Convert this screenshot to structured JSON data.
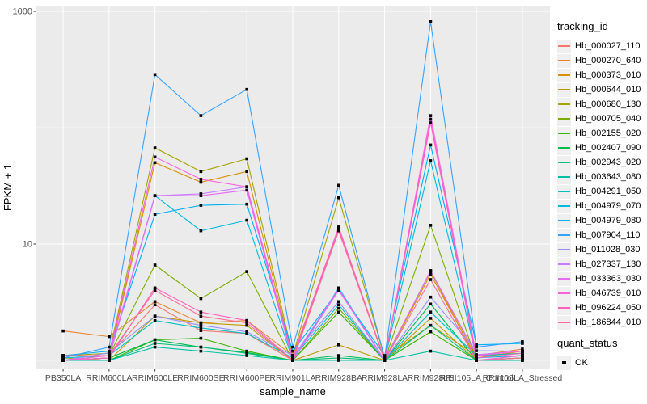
{
  "figure": {
    "y_axis": {
      "label": "FPKM + 1"
    },
    "x_axis": {
      "label": "sample_name"
    },
    "legend": {
      "tracking": {
        "title": "tracking_id"
      },
      "quant": {
        "title": "quant_status",
        "items": [
          {
            "label": "OK",
            "marker": "black-square-icon"
          }
        ]
      }
    },
    "colors": {
      "panel_bg": "#EBEBEB",
      "grid": "#FFFFFF",
      "tick_text": "#4D4D4D",
      "tick_mark": "#333333",
      "point": "#000000",
      "legend_key_bg": "#EFEFEF"
    }
  },
  "chart_data": {
    "type": "line",
    "title": "",
    "xlabel": "sample_name",
    "ylabel": "FPKM + 1",
    "yscale": "log10",
    "ylim": [
      0.84,
      1100
    ],
    "yticks": [
      {
        "value": 1000,
        "label": "1000"
      },
      {
        "value": 10,
        "label": "10"
      }
    ],
    "minor_gridlines": [
      1,
      100
    ],
    "grid": true,
    "legend_position": "right",
    "point_marker": "black-square",
    "categories": [
      "PB350LA",
      "RRIM600LA",
      "RRIM600LE",
      "RRIM600SE",
      "RRIM600PE",
      "RRIM901LA",
      "RRIM928BA",
      "RRIM928LA",
      "RRIM928LE",
      "RRII105LA_Control",
      "RRII105LA_Stressed"
    ],
    "quant_status": "OK",
    "series": [
      {
        "name": "Hb_000027_110",
        "color": "#F8766D",
        "values": [
          1.1,
          1.1,
          3.0,
          1.8,
          1.7,
          1.0,
          13.0,
          1.0,
          5.9,
          1.0,
          1.05
        ]
      },
      {
        "name": "Hb_000270_640",
        "color": "#EA8331",
        "values": [
          1.79,
          1.6,
          3.2,
          2.1,
          2.2,
          1.1,
          13.5,
          1.02,
          5.8,
          1.1,
          1.25
        ]
      },
      {
        "name": "Hb_000373_010",
        "color": "#D89000",
        "values": [
          1.0,
          1.05,
          50.0,
          34.0,
          42.0,
          1.05,
          14.0,
          1.0,
          5.5,
          1.05,
          1.2
        ]
      },
      {
        "name": "Hb_000644_010",
        "color": "#C09B00",
        "values": [
          1.05,
          1.0,
          2.4,
          2.1,
          2.0,
          1.0,
          1.36,
          1.0,
          2.3,
          1.0,
          1.1
        ]
      },
      {
        "name": "Hb_000680_130",
        "color": "#A3A500",
        "values": [
          1.1,
          1.15,
          67.0,
          42.0,
          54.0,
          1.1,
          25.0,
          1.05,
          2.0,
          1.1,
          1.15
        ]
      },
      {
        "name": "Hb_000705_040",
        "color": "#7CAE00",
        "values": [
          1.0,
          1.1,
          6.6,
          3.4,
          5.8,
          1.0,
          2.8,
          1.0,
          14.5,
          1.0,
          1.05
        ]
      },
      {
        "name": "Hb_002155_020",
        "color": "#39B600",
        "values": [
          1.0,
          1.0,
          1.5,
          1.55,
          1.2,
          1.0,
          2.6,
          1.0,
          1.76,
          1.0,
          1.0
        ]
      },
      {
        "name": "Hb_002407_090",
        "color": "#00BB4E",
        "values": [
          1.0,
          1.05,
          1.5,
          1.3,
          1.17,
          1.0,
          1.1,
          1.0,
          3.05,
          1.0,
          1.05
        ]
      },
      {
        "name": "Hb_002943_020",
        "color": "#00BF7D",
        "values": [
          1.0,
          1.0,
          1.4,
          1.3,
          1.15,
          1.0,
          1.05,
          1.0,
          2.0,
          1.0,
          1.0
        ]
      },
      {
        "name": "Hb_003643_080",
        "color": "#00C1A3",
        "values": [
          1.0,
          1.0,
          1.3,
          1.2,
          1.1,
          1.0,
          1.0,
          1.0,
          1.2,
          1.0,
          1.0
        ]
      },
      {
        "name": "Hb_004291_050",
        "color": "#00BFC4",
        "values": [
          1.05,
          1.1,
          2.2,
          1.9,
          1.7,
          1.05,
          3.0,
          1.0,
          2.6,
          1.1,
          1.15
        ]
      },
      {
        "name": "Hb_004979_070",
        "color": "#00BAE0",
        "values": [
          1.0,
          1.05,
          26.0,
          13.0,
          16.0,
          1.0,
          4.2,
          1.0,
          52.0,
          1.05,
          1.1
        ]
      },
      {
        "name": "Hb_004979_080",
        "color": "#00B0F6",
        "values": [
          1.1,
          1.2,
          18.0,
          21.5,
          22.0,
          1.2,
          4.0,
          1.1,
          71.0,
          1.36,
          1.4
        ]
      },
      {
        "name": "Hb_007904_110",
        "color": "#35A2FF",
        "values": [
          1.05,
          1.3,
          286,
          127,
          213,
          1.3,
          32.0,
          1.05,
          815,
          1.3,
          1.45
        ]
      },
      {
        "name": "Hb_011028_030",
        "color": "#9590FF",
        "values": [
          1.0,
          1.16,
          2.4,
          2.0,
          1.76,
          1.1,
          3.2,
          1.0,
          3.5,
          1.21,
          1.2
        ]
      },
      {
        "name": "Hb_027337_130",
        "color": "#C77CFF",
        "values": [
          1.0,
          1.1,
          26.0,
          27.0,
          31.0,
          1.05,
          4.1,
          1.0,
          5.9,
          1.12,
          1.2
        ]
      },
      {
        "name": "Hb_033363_030",
        "color": "#E76BF3",
        "values": [
          1.0,
          1.05,
          26.0,
          26.0,
          29.0,
          1.0,
          4.0,
          1.0,
          118,
          1.0,
          1.1
        ]
      },
      {
        "name": "Hb_046739_010",
        "color": "#FA62DB",
        "values": [
          1.0,
          1.1,
          56.0,
          36.0,
          31.0,
          1.05,
          14.0,
          1.0,
          127,
          1.1,
          1.2
        ]
      },
      {
        "name": "Hb_096224_050",
        "color": "#FF62BC",
        "values": [
          1.0,
          1.05,
          4.2,
          2.6,
          2.2,
          1.0,
          13.5,
          1.0,
          110,
          1.05,
          1.15
        ]
      },
      {
        "name": "Hb_186844_010",
        "color": "#FF6A98",
        "values": [
          1.1,
          1.1,
          4.0,
          2.4,
          2.1,
          1.0,
          13.0,
          1.0,
          4.95,
          1.0,
          1.05
        ]
      }
    ]
  }
}
